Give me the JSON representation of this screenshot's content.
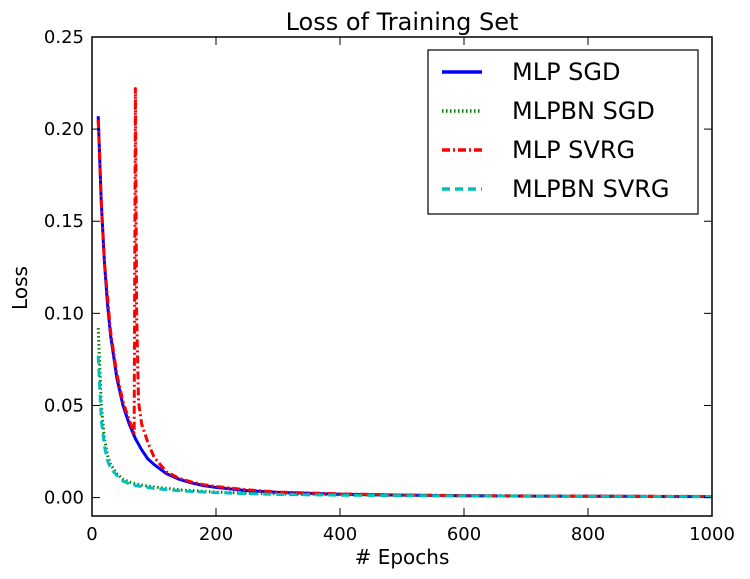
{
  "chart_data": {
    "type": "line",
    "title": "Loss of Training Set",
    "xlabel": "# Epochs",
    "ylabel": "Loss",
    "xlim": [
      0,
      1000
    ],
    "ylim": [
      -0.01,
      0.25
    ],
    "x_ticks": [
      "0",
      "200",
      "400",
      "600",
      "800",
      "1000"
    ],
    "y_ticks": [
      "0.00",
      "0.05",
      "0.10",
      "0.15",
      "0.20",
      "0.25"
    ],
    "grid": false,
    "legend_position": "top-right",
    "series": [
      {
        "name": "MLP SGD",
        "color": "#0000ff",
        "style": "solid",
        "x": [
          10,
          15,
          20,
          25,
          30,
          40,
          50,
          60,
          70,
          80,
          90,
          100,
          120,
          140,
          160,
          180,
          200,
          250,
          300,
          400,
          500,
          600,
          700,
          800,
          900,
          1000
        ],
        "y": [
          0.207,
          0.16,
          0.128,
          0.105,
          0.088,
          0.065,
          0.05,
          0.04,
          0.032,
          0.026,
          0.021,
          0.018,
          0.013,
          0.01,
          0.008,
          0.0065,
          0.0055,
          0.0038,
          0.0028,
          0.0018,
          0.0013,
          0.001,
          0.0008,
          0.0007,
          0.0006,
          0.0005
        ]
      },
      {
        "name": "MLPBN SGD",
        "color": "#008000",
        "style": "dotted",
        "x": [
          10,
          15,
          20,
          25,
          30,
          40,
          50,
          60,
          70,
          80,
          100,
          120,
          150,
          200,
          250,
          300,
          400,
          500,
          600,
          700,
          800,
          900,
          1000
        ],
        "y": [
          0.092,
          0.05,
          0.032,
          0.023,
          0.018,
          0.013,
          0.01,
          0.0085,
          0.0075,
          0.0068,
          0.0058,
          0.005,
          0.004,
          0.003,
          0.0024,
          0.002,
          0.0015,
          0.0012,
          0.001,
          0.0009,
          0.0008,
          0.0007,
          0.0006
        ]
      },
      {
        "name": "MLP SVRG",
        "color": "#ff0000",
        "style": "dashdot",
        "x": [
          10,
          15,
          20,
          30,
          40,
          50,
          60,
          68,
          70,
          72,
          75,
          80,
          90,
          100,
          120,
          140,
          160,
          180,
          200,
          250,
          300,
          400,
          500,
          600,
          700,
          800,
          900,
          1000
        ],
        "y": [
          0.205,
          0.16,
          0.128,
          0.09,
          0.067,
          0.052,
          0.042,
          0.035,
          0.222,
          0.1,
          0.052,
          0.04,
          0.03,
          0.022,
          0.014,
          0.0105,
          0.0085,
          0.007,
          0.006,
          0.0042,
          0.003,
          0.002,
          0.0014,
          0.0011,
          0.0009,
          0.0008,
          0.0007,
          0.0006
        ]
      },
      {
        "name": "MLPBN SVRG",
        "color": "#00bfbf",
        "style": "dashed",
        "x": [
          10,
          15,
          20,
          25,
          30,
          40,
          50,
          60,
          70,
          80,
          100,
          120,
          150,
          200,
          250,
          300,
          400,
          500,
          600,
          700,
          800,
          900,
          1000
        ],
        "y": [
          0.077,
          0.042,
          0.028,
          0.02,
          0.016,
          0.012,
          0.009,
          0.0075,
          0.0065,
          0.006,
          0.005,
          0.0043,
          0.0035,
          0.0027,
          0.0021,
          0.0017,
          0.0013,
          0.001,
          0.0009,
          0.0008,
          0.0007,
          0.0006,
          0.0005
        ]
      }
    ]
  }
}
